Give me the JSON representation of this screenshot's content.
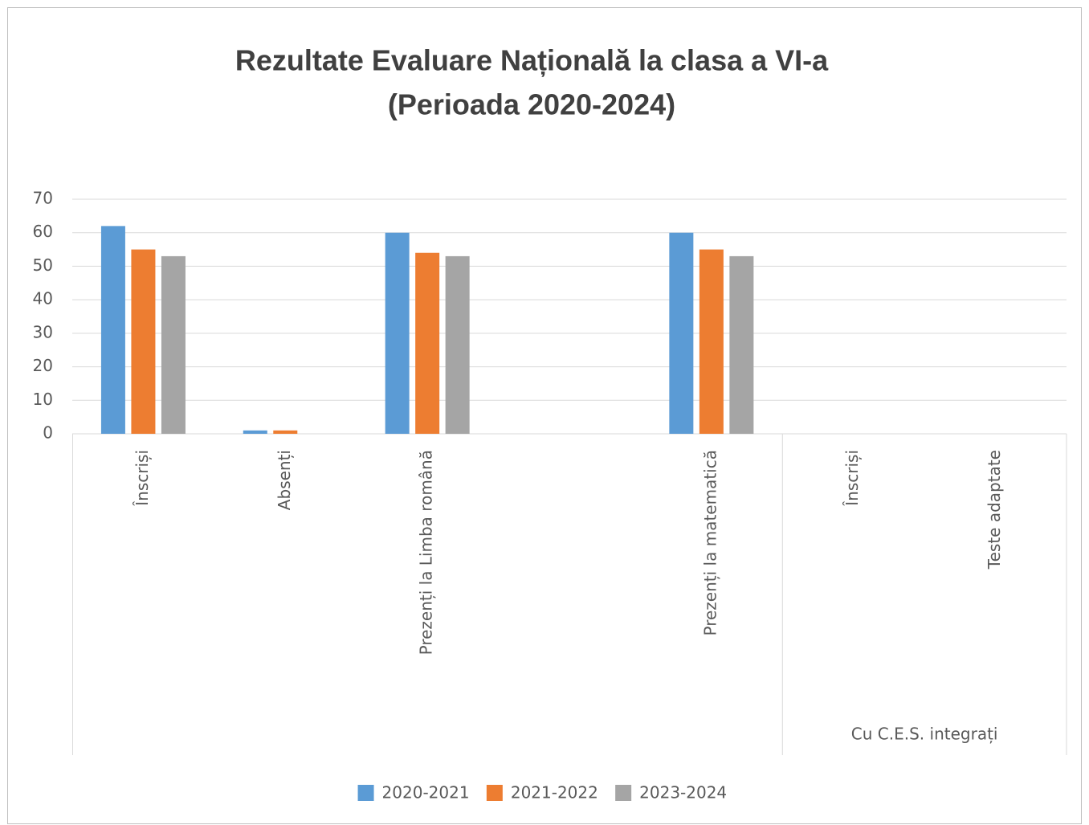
{
  "chart_data": {
    "type": "bar",
    "title": [
      "Rezultate Evaluare Națională la clasa a VI-a",
      "(Perioada 2020-2024)"
    ],
    "categories": [
      "Înscriși",
      "Absenți",
      "Prezenți la Limba română",
      null,
      "Prezenți la matematică",
      "Înscriși",
      "Teste adaptate"
    ],
    "category_groups": [
      {
        "name": "Cu C.E.S. integrați",
        "first": 5,
        "last": 6
      }
    ],
    "series": [
      {
        "name": "2020-2021",
        "color": "#5b9bd5",
        "values": [
          62,
          1,
          60,
          null,
          60,
          0,
          0
        ]
      },
      {
        "name": "2021-2022",
        "color": "#ed7d31",
        "values": [
          55,
          1,
          54,
          null,
          55,
          0,
          0
        ]
      },
      {
        "name": "2023-2024",
        "color": "#a5a5a5",
        "values": [
          53,
          0,
          53,
          null,
          53,
          0,
          0
        ]
      }
    ],
    "ylim": [
      0,
      70
    ],
    "yticks": [
      0,
      10,
      20,
      30,
      40,
      50,
      60,
      70
    ],
    "grid": true,
    "legend": "bottom"
  }
}
